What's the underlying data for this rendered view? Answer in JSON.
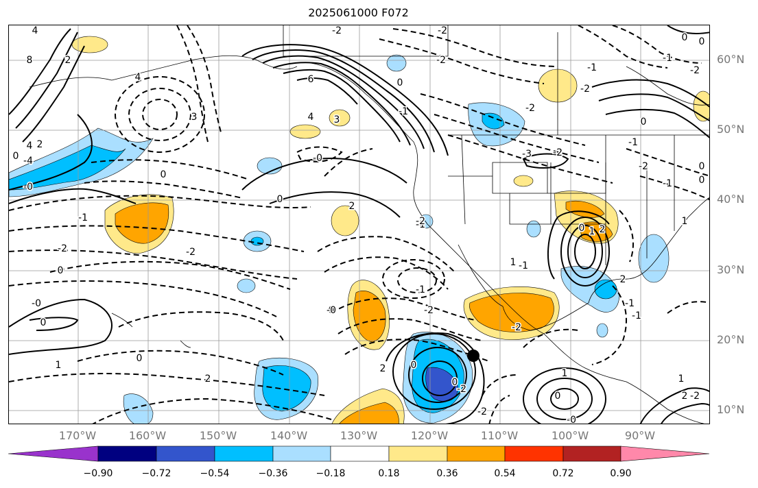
{
  "title": "2025061000 F072",
  "lat_labels": [
    "60°N",
    "50°N",
    "40°N",
    "30°N",
    "20°N",
    "10°N"
  ],
  "lon_labels": [
    "170°W",
    "160°W",
    "150°W",
    "140°W",
    "130°W",
    "120°W",
    "110°W",
    "100°W",
    "90°W"
  ],
  "colorbar": {
    "colors": [
      "#9933cc",
      "#000080",
      "#3355cc",
      "#00bfff",
      "#aadfff",
      "#ffffff",
      "#ffe98a",
      "#ffa500",
      "#ff3300",
      "#b22222",
      "#ff88aa"
    ],
    "tick_labels": [
      "−0.90",
      "−0.72",
      "−0.54",
      "−0.36",
      "−0.18",
      "0.18",
      "0.36",
      "0.54",
      "0.72",
      "0.90"
    ]
  },
  "contour_labels": [
    "4",
    "8",
    "4",
    "2",
    "3",
    "4",
    "2",
    "0",
    "-4",
    "6",
    "4",
    "3",
    "-0",
    "2",
    "-2",
    "0",
    "-2",
    "0",
    "-1",
    "0",
    "-2",
    "-2",
    "-1",
    "0",
    "-0",
    "0",
    "-2",
    "-1",
    "-2",
    "0",
    "-1",
    "-2",
    "-1",
    "-2",
    "-3",
    "-2",
    "0",
    "-1",
    "0",
    "1",
    "0",
    "-0",
    "1",
    "2",
    "0",
    "-1",
    "-1",
    "-2",
    "0",
    "-1",
    "1",
    "0",
    "2",
    "-1",
    "2",
    "1",
    "0",
    "-0",
    "-2",
    "1",
    "-2",
    "0",
    "-2",
    "2",
    "0",
    "-2",
    "-0",
    "-2",
    "1",
    "2",
    "-2",
    "-1",
    "0",
    "0"
  ]
}
